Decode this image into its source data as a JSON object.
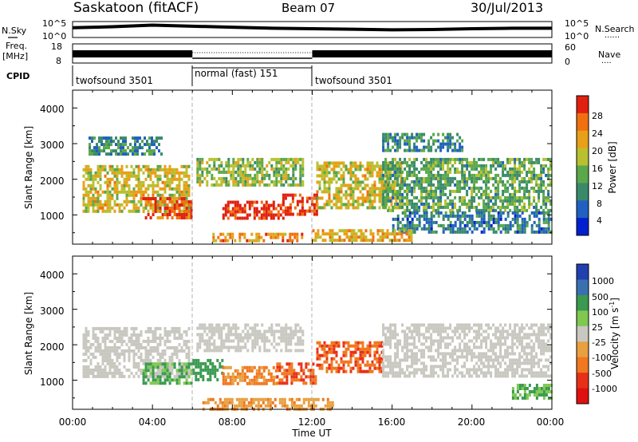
{
  "header": {
    "station": "Saskatoon (fitACF)",
    "beam": "Beam 07",
    "date": "30/Jul/2013"
  },
  "nsky_panel": {
    "left_label": "N.Sky",
    "left_ticks": [
      "10^5",
      "10^0"
    ],
    "right_ticks": [
      "10^5",
      "10^0"
    ],
    "right_label": "N.Search",
    "right_legend": "......"
  },
  "freq_panel": {
    "left_label_top": "Freq.",
    "left_label_bottom": "[MHz]",
    "left_ticks": [
      "18",
      "8"
    ],
    "right_ticks": [
      "60",
      "0"
    ],
    "right_label": "Nave",
    "right_legend": "...."
  },
  "cpid": {
    "label": "CPID",
    "segments": [
      {
        "name": "twofsound 3501",
        "start_hour": 0,
        "end_hour": 6
      },
      {
        "name": "normal (fast) 151",
        "start_hour": 6,
        "end_hour": 12
      },
      {
        "name": "twofsound 3501",
        "start_hour": 12,
        "end_hour": 24
      }
    ]
  },
  "axes": {
    "x_ticks": [
      "00:00",
      "04:00",
      "08:00",
      "12:00",
      "16:00",
      "20:00",
      "00:00"
    ],
    "x_label": "Time UT",
    "y_ticks": [
      "1000",
      "2000",
      "3000",
      "4000"
    ],
    "y_label": "Slant Range [km]"
  },
  "colorbars": {
    "power": {
      "label": "Power [dB]",
      "ticks": [
        "28",
        "24",
        "20",
        "16",
        "12",
        "8",
        "4"
      ],
      "colors": [
        "#0020d0",
        "#2060c0",
        "#3a8a6a",
        "#5aa84a",
        "#b8c030",
        "#e8a018",
        "#f07010",
        "#e02010"
      ]
    },
    "velocity": {
      "label": "Velocity [m s",
      "label_sup": "-1",
      "label_end": "]",
      "ticks": [
        "1000",
        "500",
        "100",
        "25",
        "-25",
        "-100",
        "-500",
        "-1000"
      ],
      "colors": [
        "#2040b0",
        "#3a70b0",
        "#3a9a50",
        "#80c850",
        "#c8c8c0",
        "#e8a040",
        "#f07820",
        "#e83018",
        "#e01010"
      ]
    }
  },
  "chart_data": [
    {
      "type": "line",
      "panel": "N.Sky / N.Search",
      "x": [
        0,
        2,
        4,
        6,
        8,
        10,
        12,
        14,
        16,
        18,
        20,
        22,
        24
      ],
      "series": [
        {
          "values": [
            3.2,
            3.6,
            4.2,
            3.8,
            3.4,
            3.0,
            2.8,
            2.6,
            2.4,
            2.5,
            2.8,
            3.0,
            3.0
          ]
        }
      ],
      "ylim": [
        0,
        5
      ]
    },
    {
      "type": "line",
      "panel": "Freq. [MHz] / Nave",
      "x": [
        0,
        6,
        6,
        12,
        12,
        24
      ],
      "series": [
        {
          "values": [
            11,
            11,
            11,
            11,
            11,
            11
          ]
        }
      ],
      "ylim": [
        8,
        18
      ]
    },
    {
      "type": "heatmap",
      "panel": "Power [dB]",
      "xlabel": "Time UT",
      "ylabel": "Slant Range [km]",
      "xlim": [
        0,
        24
      ],
      "ylim": [
        180,
        4500
      ],
      "zlim": [
        0,
        30
      ],
      "regions": [
        {
          "t0": 0.5,
          "t1": 5.8,
          "r0": 1100,
          "r1": 2400,
          "db": 18
        },
        {
          "t0": 0.8,
          "t1": 4.5,
          "r0": 2700,
          "r1": 3200,
          "db": 9
        },
        {
          "t0": 3.5,
          "t1": 6.0,
          "r0": 900,
          "r1": 1500,
          "db": 26
        },
        {
          "t0": 7.5,
          "t1": 10.5,
          "r0": 900,
          "r1": 1400,
          "db": 28
        },
        {
          "t0": 10.5,
          "t1": 12.2,
          "r0": 1000,
          "r1": 1600,
          "db": 28
        },
        {
          "t0": 6.2,
          "t1": 11.5,
          "r0": 1800,
          "r1": 2600,
          "db": 15
        },
        {
          "t0": 12.2,
          "t1": 16.5,
          "r0": 1200,
          "r1": 2500,
          "db": 18
        },
        {
          "t0": 15.5,
          "t1": 24.0,
          "r0": 1100,
          "r1": 2600,
          "db": 12
        },
        {
          "t0": 16.0,
          "t1": 24.0,
          "r0": 500,
          "r1": 1100,
          "db": 8
        },
        {
          "t0": 15.5,
          "t1": 19.5,
          "r0": 2800,
          "r1": 3300,
          "db": 9
        },
        {
          "t0": 7.0,
          "t1": 11.5,
          "r0": 250,
          "r1": 500,
          "db": 22
        },
        {
          "t0": 12.0,
          "t1": 17.0,
          "r0": 300,
          "r1": 600,
          "db": 20
        }
      ]
    },
    {
      "type": "heatmap",
      "panel": "Velocity [m s-1]",
      "xlabel": "Time UT",
      "ylabel": "Slant Range [km]",
      "xlim": [
        0,
        24
      ],
      "ylim": [
        180,
        4500
      ],
      "zlim": [
        -1000,
        1000
      ],
      "regions": [
        {
          "t0": 0.5,
          "t1": 5.8,
          "r0": 1100,
          "r1": 2500,
          "v": 0
        },
        {
          "t0": 3.5,
          "t1": 6.0,
          "r0": 900,
          "r1": 1500,
          "v": 120
        },
        {
          "t0": 6.0,
          "t1": 7.5,
          "r0": 1000,
          "r1": 1600,
          "v": 300
        },
        {
          "t0": 7.5,
          "t1": 10.2,
          "r0": 900,
          "r1": 1400,
          "v": -120
        },
        {
          "t0": 10.2,
          "t1": 12.2,
          "r0": 900,
          "r1": 1500,
          "v": -500
        },
        {
          "t0": 12.2,
          "t1": 15.5,
          "r0": 1200,
          "r1": 2100,
          "v": -450
        },
        {
          "t0": 6.2,
          "t1": 11.5,
          "r0": 1800,
          "r1": 2600,
          "v": 0
        },
        {
          "t0": 15.5,
          "t1": 24.0,
          "r0": 1100,
          "r1": 2600,
          "v": 0
        },
        {
          "t0": 22.0,
          "t1": 24.0,
          "r0": 500,
          "r1": 900,
          "v": 110
        },
        {
          "t0": 6.5,
          "t1": 13.0,
          "r0": 200,
          "r1": 500,
          "v": -80
        }
      ]
    }
  ]
}
